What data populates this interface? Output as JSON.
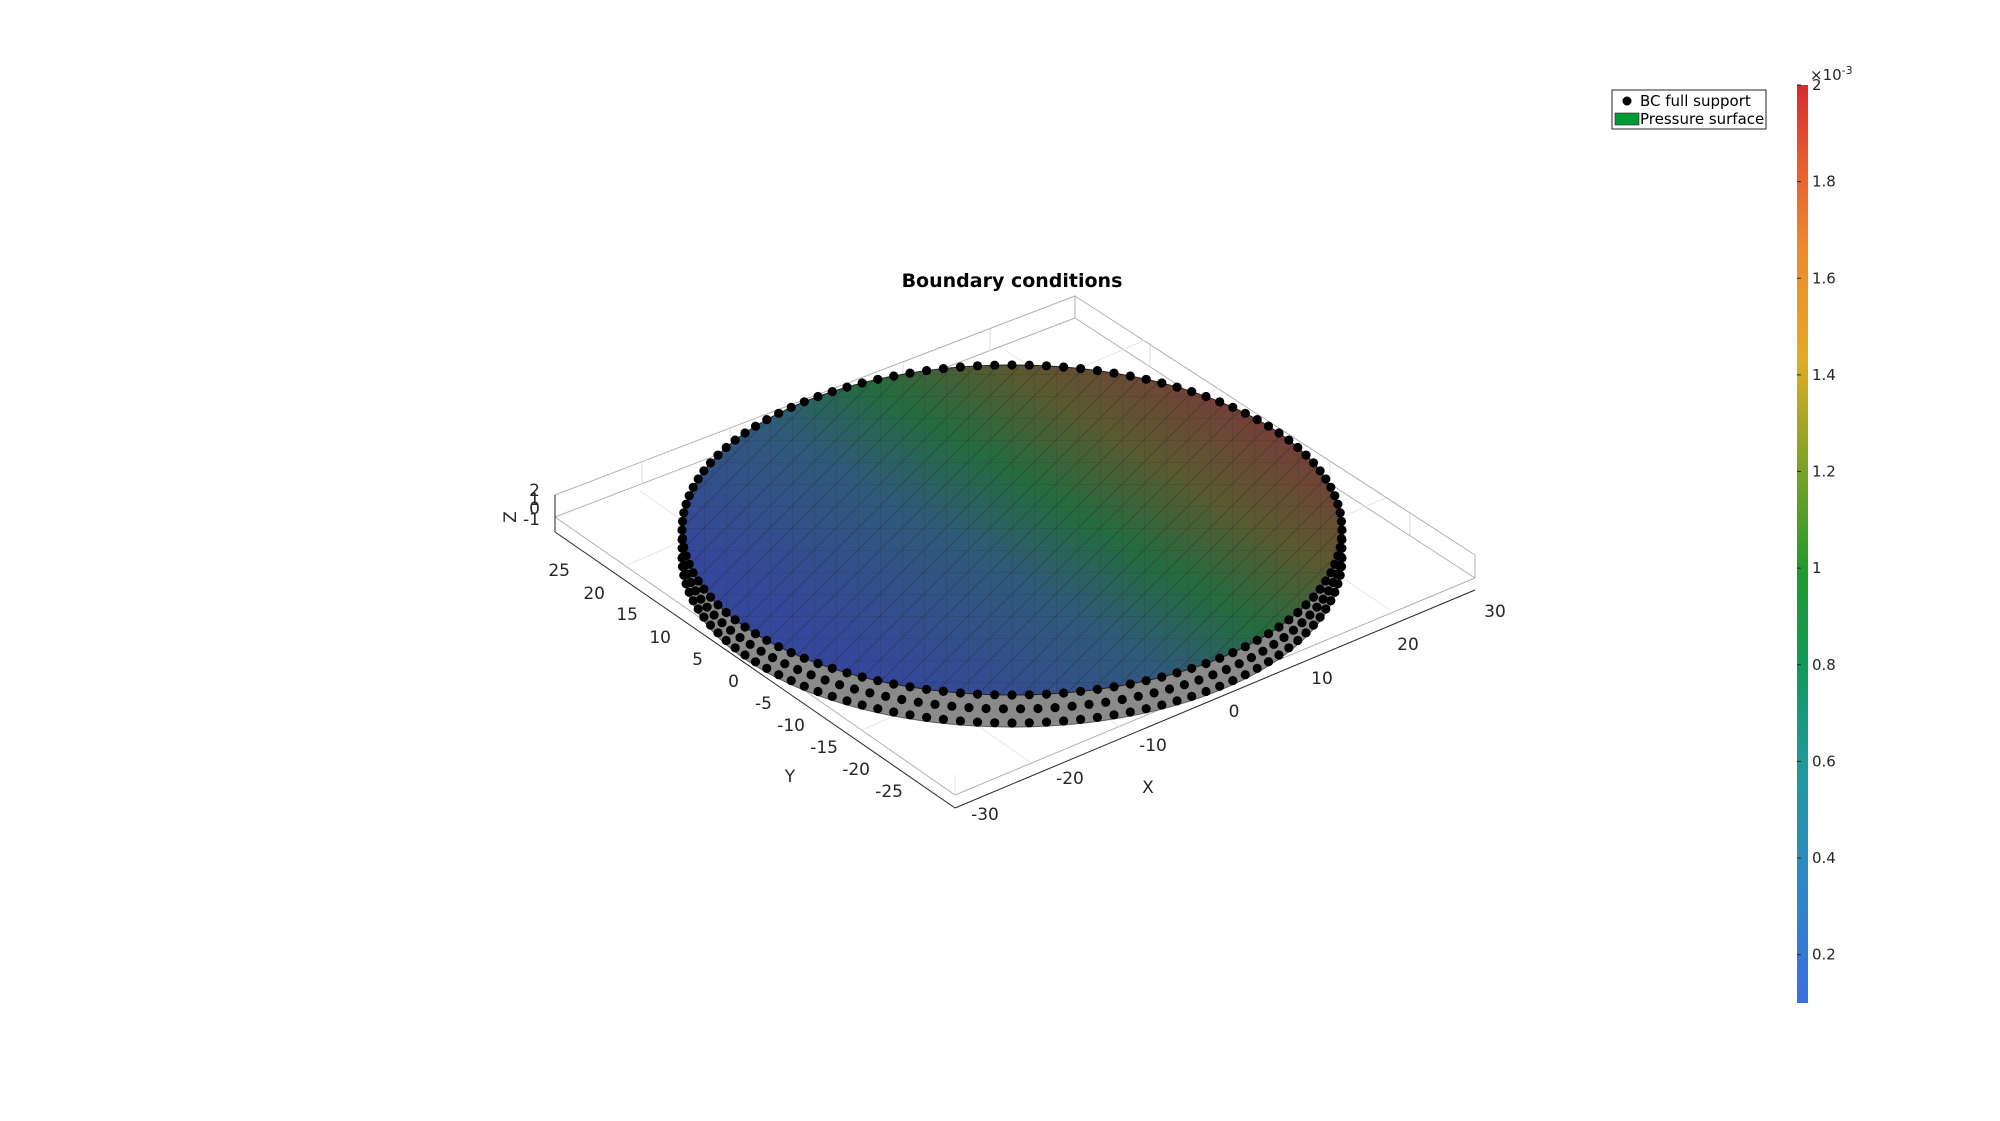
{
  "title": "Boundary conditions",
  "axes": {
    "xlabel": "X",
    "ylabel": "Y",
    "zlabel": "Z",
    "x_ticks": [
      "-30",
      "-20",
      "-10",
      "0",
      "10",
      "20",
      "30"
    ],
    "y_ticks": [
      "-25",
      "-20",
      "-15",
      "-10",
      "-5",
      "0",
      "5",
      "10",
      "15",
      "20",
      "25"
    ],
    "z_ticks": [
      "-1",
      "0",
      "1",
      "2"
    ]
  },
  "legend": {
    "items": [
      {
        "label": "BC full support",
        "marker": "black-dot-icon",
        "color": "#000000"
      },
      {
        "label": "Pressure surface",
        "marker": "green-patch-icon",
        "color": "#009933"
      }
    ]
  },
  "colorbar": {
    "exponent_base": "×10",
    "exponent_power": "-3",
    "ticks": [
      "0.2",
      "0.4",
      "0.6",
      "0.8",
      "1",
      "1.2",
      "1.4",
      "1.6",
      "1.8",
      "2"
    ],
    "range": [
      0.1,
      2.0
    ],
    "colormap": [
      "#3b6fe0",
      "#2f86c8",
      "#1f9aa0",
      "#0f9a5a",
      "#219a2c",
      "#8aa423",
      "#e2ab24",
      "#ef8a2a",
      "#e65a2f",
      "#d82a2e"
    ]
  },
  "surface_colors": {
    "low": "#35479a",
    "mid": "#246c3e",
    "high": "#7a3a39"
  }
}
